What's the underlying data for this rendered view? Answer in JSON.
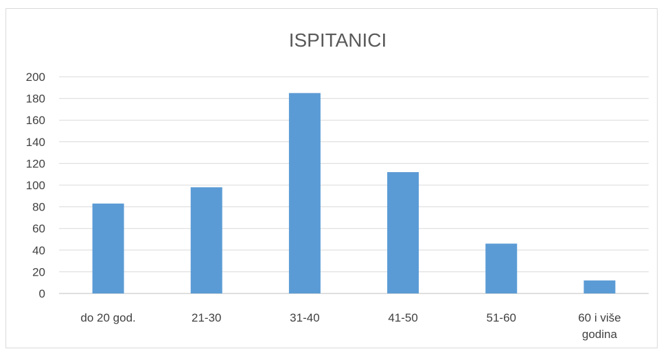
{
  "chart_data": {
    "type": "bar",
    "title": "ISPITANICI",
    "categories": [
      [
        "do 20 god."
      ],
      [
        "21-30"
      ],
      [
        "31-40"
      ],
      [
        "41-50"
      ],
      [
        "51-60"
      ],
      [
        "60 i više",
        "godina"
      ]
    ],
    "series": [
      {
        "values": [
          83,
          98,
          185,
          112,
          46,
          12
        ]
      }
    ],
    "ylim": [
      0,
      200
    ],
    "yticks": [
      0,
      20,
      40,
      60,
      80,
      100,
      120,
      140,
      160,
      180,
      200
    ],
    "grid": true,
    "bar_color": "#5b9bd5",
    "grid_color": "#d9d9d9",
    "axis_color": "#bfbfbf"
  }
}
